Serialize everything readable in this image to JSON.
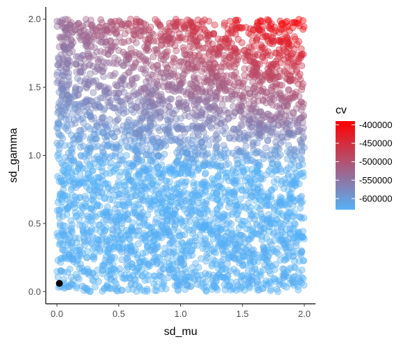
{
  "chart_data": {
    "type": "scatter",
    "xlabel": "sd_mu",
    "ylabel": "sd_gamma",
    "xlim": [
      -0.09,
      2.09
    ],
    "ylim": [
      -0.09,
      2.09
    ],
    "x_ticks": [
      0.0,
      0.5,
      1.0,
      1.5,
      2.0
    ],
    "x_tick_labels": [
      "0.0",
      "0.5",
      "1.0",
      "1.5",
      "2.0"
    ],
    "y_ticks": [
      0.0,
      0.5,
      1.0,
      1.5,
      2.0
    ],
    "y_tick_labels": [
      "0.0",
      "0.5",
      "1.0",
      "1.5",
      "2.0"
    ],
    "grid": false,
    "point_count": 4000,
    "point_alpha": 0.4,
    "sample_domain": {
      "x": [
        0,
        2
      ],
      "y": [
        0,
        2
      ]
    },
    "color_scale": {
      "title": "cv",
      "low_color": "#56B1F7",
      "high_color": "#FF0000",
      "min": -630000,
      "max": -390000,
      "breaks": [
        -400000,
        -450000,
        -500000,
        -550000,
        -600000
      ],
      "break_labels": [
        "-400000",
        "-450000",
        "-500000",
        "-550000",
        "-600000"
      ],
      "legend_position": "right"
    },
    "highlight_point": {
      "x": 0.02,
      "y": 0.06,
      "color": "#000000"
    }
  }
}
